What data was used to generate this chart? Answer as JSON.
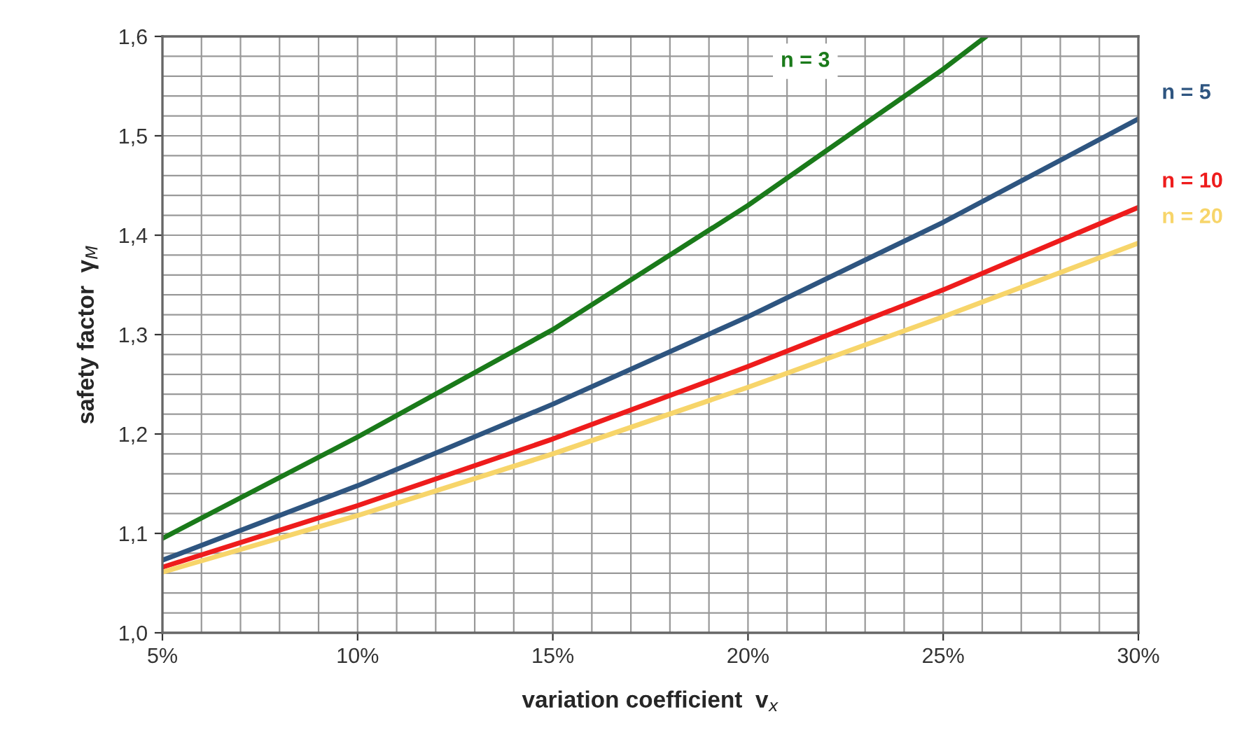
{
  "chart_data": {
    "type": "line",
    "xlabel": "variation coefficient  v$_{x}$",
    "ylabel": "safety factor  γ$_{M}$",
    "xlim": [
      5,
      30
    ],
    "ylim": [
      1.0,
      1.6
    ],
    "xticks": [
      {
        "value": 5,
        "label": "5%"
      },
      {
        "value": 10,
        "label": "10%"
      },
      {
        "value": 15,
        "label": "15%"
      },
      {
        "value": 20,
        "label": "20%"
      },
      {
        "value": 25,
        "label": "25%"
      },
      {
        "value": 30,
        "label": "30%"
      }
    ],
    "yticks": [
      {
        "value": 1.0,
        "label": "1,0"
      },
      {
        "value": 1.1,
        "label": "1,1"
      },
      {
        "value": 1.2,
        "label": "1,2"
      },
      {
        "value": 1.3,
        "label": "1,3"
      },
      {
        "value": 1.4,
        "label": "1,4"
      },
      {
        "value": 1.5,
        "label": "1,5"
      },
      {
        "value": 1.6,
        "label": "1,6"
      }
    ],
    "grid": true,
    "marker": "none",
    "line_style": "solid",
    "series": [
      {
        "name": "n = 3",
        "color": "#1a7a1a",
        "x": [
          5,
          10,
          15,
          20,
          25,
          26.1
        ],
        "values": [
          1.095,
          1.197,
          1.305,
          1.43,
          1.567,
          1.6
        ]
      },
      {
        "name": "n = 5",
        "color": "#2e5580",
        "x": [
          5,
          10,
          15,
          20,
          25,
          30
        ],
        "values": [
          1.073,
          1.148,
          1.23,
          1.318,
          1.413,
          1.517
        ]
      },
      {
        "name": "n = 10",
        "color": "#ee1c1c",
        "x": [
          5,
          10,
          15,
          20,
          25,
          30
        ],
        "values": [
          1.066,
          1.128,
          1.195,
          1.268,
          1.345,
          1.428
        ]
      },
      {
        "name": "n = 20",
        "color": "#f7d56a",
        "x": [
          5,
          10,
          15,
          20,
          25,
          30
        ],
        "values": [
          1.061,
          1.118,
          1.18,
          1.247,
          1.318,
          1.392
        ]
      }
    ]
  }
}
